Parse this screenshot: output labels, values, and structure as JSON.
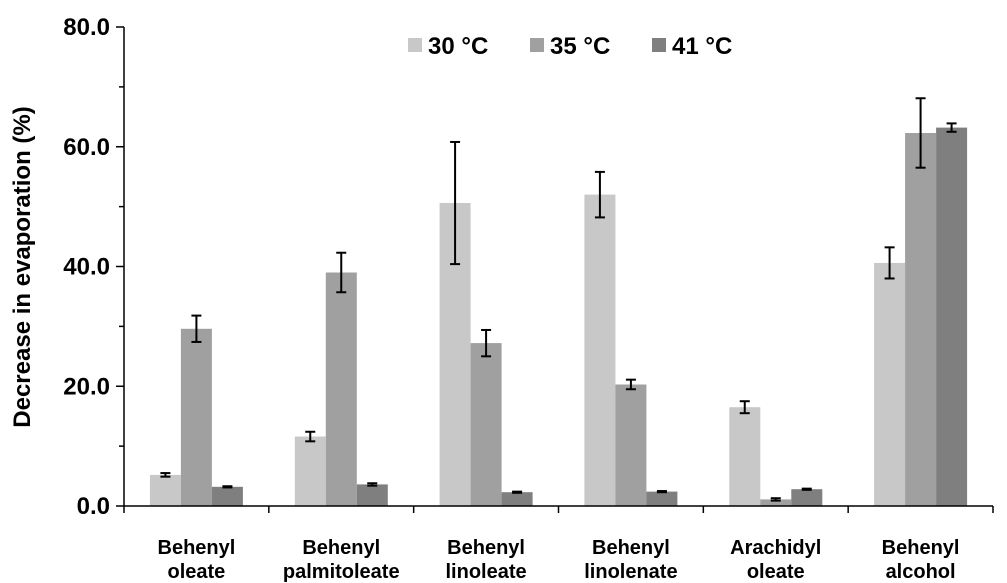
{
  "chart_data": {
    "type": "bar",
    "ylabel": "Decrease in evaporation (%)",
    "ylim": [
      0,
      80
    ],
    "yticks": [
      "0.0",
      "20.0",
      "40.0",
      "60.0",
      "80.0"
    ],
    "ytick_values": [
      0,
      20,
      40,
      60,
      80
    ],
    "categories": [
      [
        "Behenyl",
        "oleate"
      ],
      [
        "Behenyl",
        "palmitoleate"
      ],
      [
        "Behenyl",
        "linoleate"
      ],
      [
        "Behenyl",
        "linolenate"
      ],
      [
        "Arachidyl",
        "oleate"
      ],
      [
        "Behenyl",
        "alcohol"
      ]
    ],
    "legend_position": "top-center",
    "grid": false,
    "series": [
      {
        "name": "30 °C",
        "color": "#c8c8c8",
        "values": [
          5.2,
          11.6,
          50.6,
          52.0,
          16.5,
          40.6
        ],
        "errors": [
          0.3,
          0.8,
          10.2,
          3.8,
          1.0,
          2.6
        ]
      },
      {
        "name": "35 °C",
        "color": "#a0a0a0",
        "values": [
          29.6,
          39.0,
          27.2,
          20.3,
          1.1,
          62.3
        ],
        "errors": [
          2.2,
          3.3,
          2.2,
          0.8,
          0.2,
          5.8
        ]
      },
      {
        "name": "41 °C",
        "color": "#7f7f7f",
        "values": [
          3.2,
          3.6,
          2.3,
          2.4,
          2.8,
          63.2
        ],
        "errors": [
          0.1,
          0.2,
          0.1,
          0.1,
          0.1,
          0.7
        ]
      }
    ]
  }
}
